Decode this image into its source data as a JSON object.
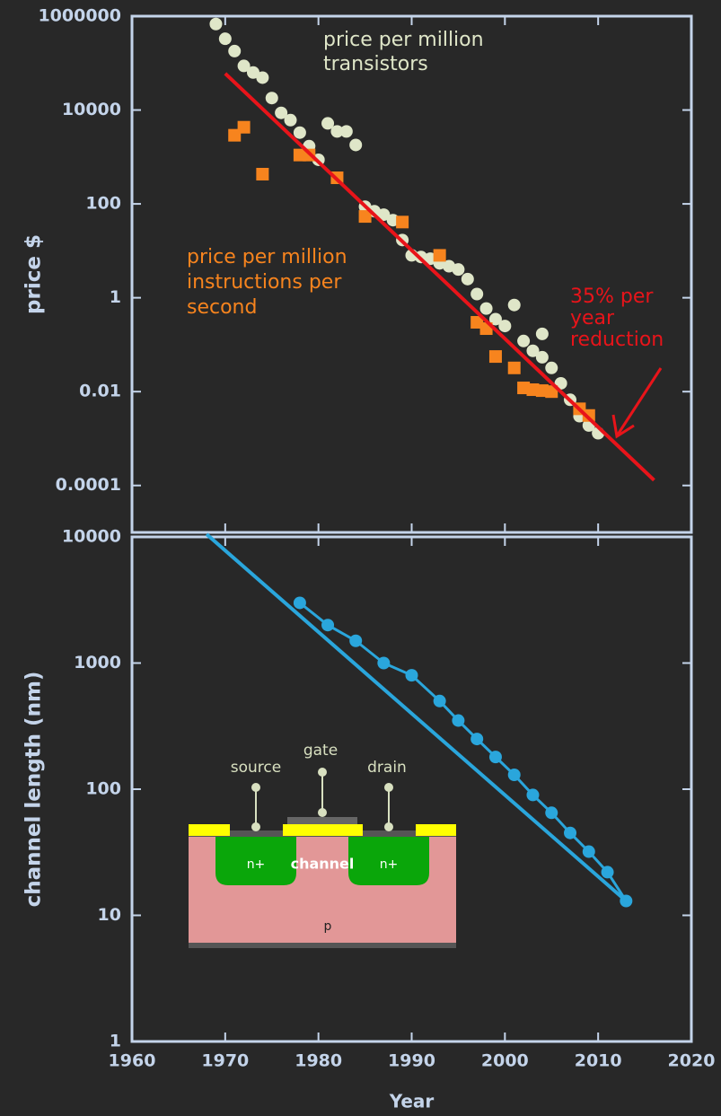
{
  "chart_data": [
    {
      "type": "scatter",
      "y_label": "price $",
      "log_y": true,
      "xlim": [
        1960,
        2020
      ],
      "xticks": [
        1960,
        1970,
        1980,
        1990,
        2000,
        2010,
        2020
      ],
      "ylim": [
        1e-05,
        1000000
      ],
      "yticks": [
        1000000,
        10000,
        100,
        1,
        0.01,
        0.0001
      ],
      "series": [
        {
          "color": "#dfe6c8",
          "marker": "circle",
          "x": [
            1969,
            1970,
            1971,
            1972,
            1973,
            1974,
            1975,
            1976,
            1977,
            1978,
            1979,
            1980,
            1981,
            1982,
            1983,
            1984,
            1985,
            1986,
            1987,
            1988,
            1989,
            1990,
            1991,
            1992,
            1993,
            1994,
            1995,
            1996,
            1997,
            1998,
            1999,
            2000,
            2001,
            2002,
            2003,
            2004,
            2004,
            2005,
            2006,
            2007,
            2008,
            2009,
            2010
          ],
          "values": [
            680000,
            330000,
            180000,
            87000,
            63000,
            49000,
            18000,
            8700,
            6100,
            3300,
            1700,
            870,
            5200,
            3500,
            3500,
            1800,
            87,
            70,
            59,
            45,
            17,
            8,
            7.4,
            6.8,
            5.4,
            4.7,
            4,
            2.5,
            1.2,
            0.59,
            0.35,
            0.25,
            0.7,
            0.12,
            0.074,
            0.054,
            0.17,
            0.032,
            0.015,
            0.0067,
            0.003,
            0.0019,
            0.0013
          ]
        },
        {
          "color": "#f7841e",
          "marker": "square",
          "x": [
            1971,
            1972,
            1974,
            1978,
            1979,
            1982,
            1985,
            1989,
            1993,
            1997,
            1998,
            1999,
            2001,
            2002,
            2003,
            2004,
            2005,
            2008,
            2009
          ],
          "values": [
            2900,
            4300,
            430,
            1100,
            1100,
            360,
            54,
            41,
            8,
            0.3,
            0.22,
            0.056,
            0.032,
            0.012,
            0.011,
            0.0105,
            0.01,
            0.0043,
            0.0031
          ]
        }
      ],
      "fit": {
        "color": "#e8141a",
        "x": [
          1970,
          2016
        ],
        "values": [
          60000,
          0.00013
        ]
      },
      "annotations": [
        {
          "color": "#dfe6c8",
          "lines": [
            "price per million",
            "transistors"
          ]
        },
        {
          "color": "#f7841e",
          "lines": [
            "price per million",
            "instructions per",
            "second"
          ]
        },
        {
          "color": "#e8141a",
          "lines": [
            "35% per",
            "year",
            "reduction"
          ]
        }
      ]
    },
    {
      "type": "line",
      "y_label": "channel length (nm)",
      "x_label": "Year",
      "log_y": true,
      "xlim": [
        1960,
        2020
      ],
      "xticks": [
        1960,
        1970,
        1980,
        1990,
        2000,
        2010,
        2020
      ],
      "ylim": [
        1,
        10000
      ],
      "yticks": [
        10000,
        1000,
        100,
        10,
        1
      ],
      "series": [
        {
          "color": "#2aa6dc",
          "marker": "circle",
          "x": [
            1978,
            1981,
            1984,
            1987,
            1990,
            1993,
            1995,
            1997,
            1999,
            2001,
            2003,
            2005,
            2007,
            2009,
            2011,
            2013
          ],
          "values": [
            3000,
            2000,
            1500,
            1000,
            800,
            500,
            350,
            250,
            180,
            130,
            90,
            65,
            45,
            32,
            22,
            13
          ]
        }
      ],
      "fit": {
        "color": "#2aa6dc",
        "x": [
          1968,
          2013
        ],
        "values": [
          10500,
          13
        ]
      },
      "inset": {
        "labels": [
          "source",
          "gate",
          "drain",
          "n+",
          "channel",
          "n+",
          "p"
        ]
      }
    }
  ]
}
